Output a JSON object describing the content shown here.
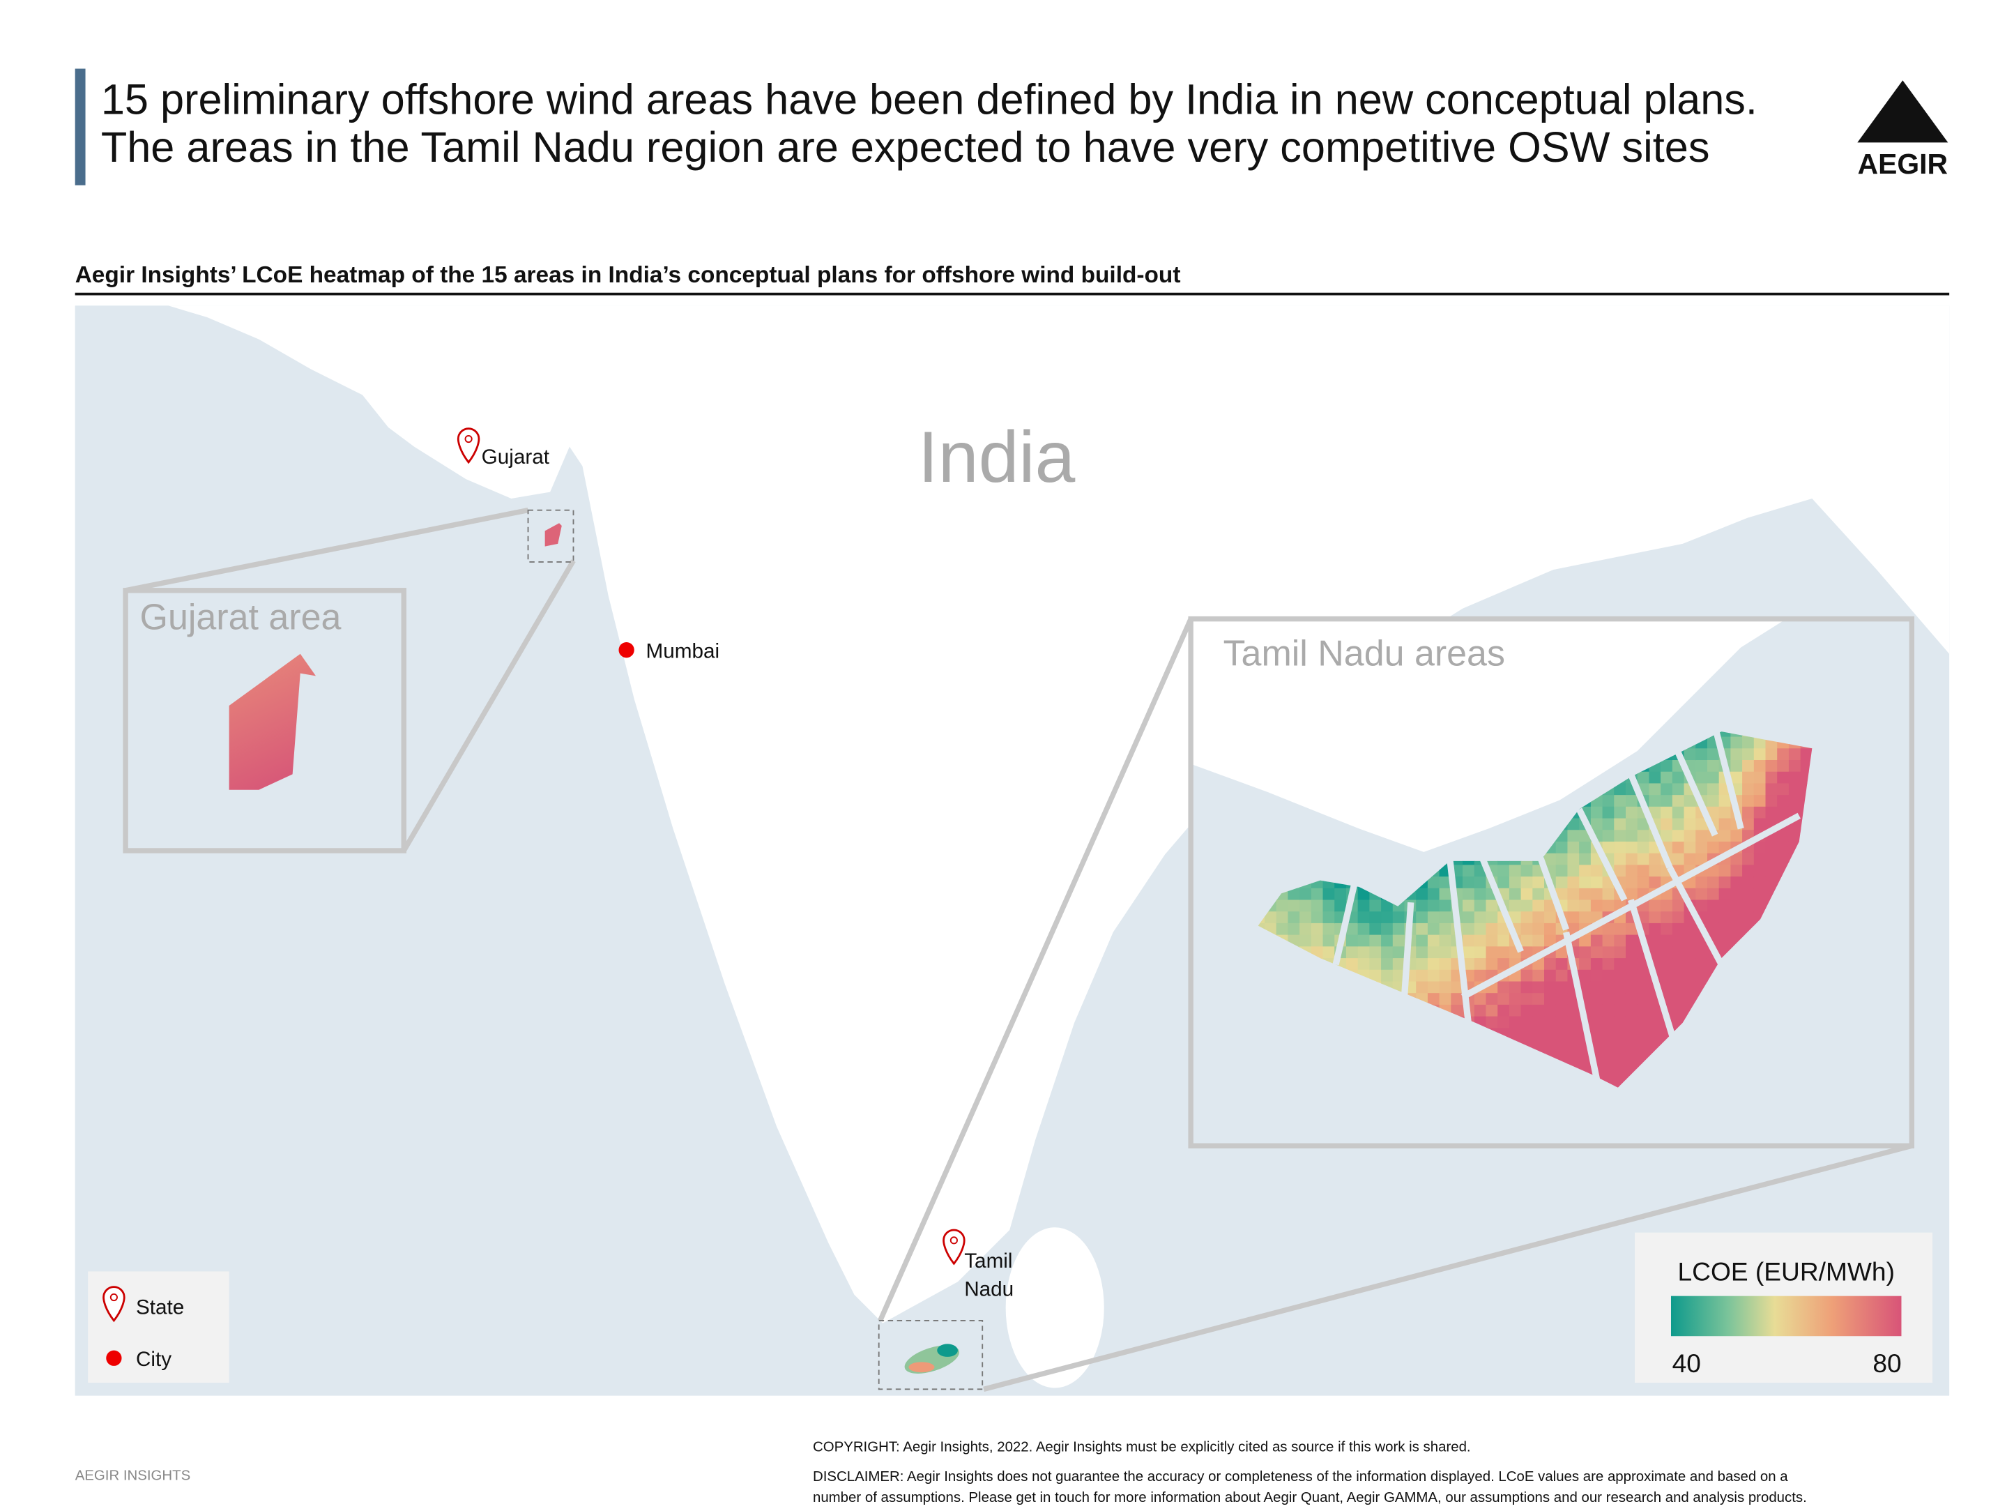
{
  "header": {
    "title_lines": [
      "15 preliminary offshore wind areas have been defined by India in new conceptual plans.",
      "The areas in the Tamil Nadu region are expected to have very competitive OSW sites"
    ],
    "logo": "AEGIR"
  },
  "map": {
    "subtitle": "Aegir Insights’ LCoE heatmap of the 15 areas in India’s conceptual plans for offshore wind build-out",
    "country_label": "India",
    "places": [
      {
        "label_lines": [
          "Gujarat"
        ],
        "kind": "State"
      },
      {
        "label_lines": [
          "Mumbai"
        ],
        "kind": "City"
      },
      {
        "label_lines": [
          "Tamil",
          "Nadu"
        ],
        "kind": "State"
      }
    ],
    "insets": [
      "Gujarat area",
      "Tamil Nadu areas"
    ],
    "legend": [
      "State",
      "City"
    ],
    "colorbar": {
      "title": "LCOE (EUR/MWh)",
      "min": 40,
      "max": 80
    }
  },
  "footer": {
    "source": "AEGIR INSIGHTS",
    "copyright": "COPYRIGHT: Aegir Insights, 2022. Aegir Insights must be explicitly cited as source if this work is shared.",
    "disclaimer_lines": [
      "DISCLAIMER: Aegir Insights does not guarantee the accuracy or completeness of the information displayed. LCoE values are approximate and based on a",
      "number of assumptions. Please get in touch for more information about Aegir Quant, Aegir GAMMA, our assumptions and our research and analysis products."
    ]
  }
}
